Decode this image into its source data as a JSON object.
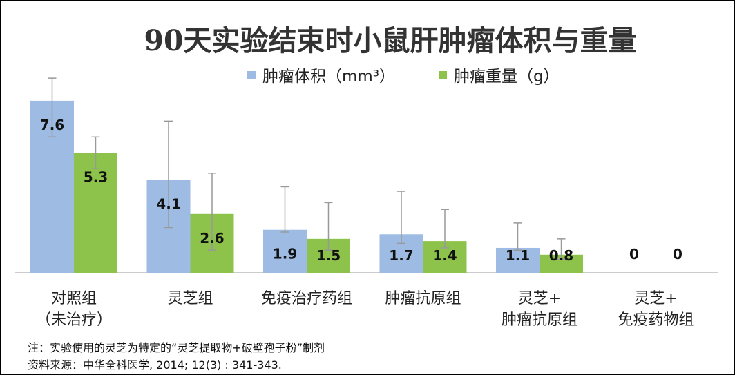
{
  "chart_data": {
    "type": "bar",
    "title": "90天实验结束时小鼠肝肿瘤体积与重量",
    "categories": [
      [
        "对照组",
        "（未治疗）"
      ],
      [
        "灵芝组"
      ],
      [
        "免疫治疗药组"
      ],
      [
        "肿瘤抗原组"
      ],
      [
        "灵芝+",
        "肿瘤抗原组"
      ],
      [
        "灵芝+",
        "免疫药物组"
      ]
    ],
    "series": [
      {
        "name": "肿瘤体积（mm³）",
        "color": "#9dbbe3",
        "values": [
          7.6,
          4.1,
          1.9,
          1.7,
          1.1,
          0
        ],
        "value_labels": [
          "7.6",
          "4.1",
          "1.9",
          "1.7",
          "1.1",
          "0"
        ],
        "error": [
          [
            6.0,
            8.6
          ],
          [
            2.0,
            6.7
          ],
          [
            1.8,
            3.8
          ],
          [
            1.3,
            3.6
          ],
          [
            1.0,
            2.2
          ],
          [
            0,
            0
          ]
        ]
      },
      {
        "name": "肿瘤重量（g）",
        "color": "#8dc34a",
        "values": [
          5.3,
          2.6,
          1.5,
          1.4,
          0.8,
          0
        ],
        "value_labels": [
          "5.3",
          "2.6",
          "1.5",
          "1.4",
          "0.8",
          "0"
        ],
        "error": [
          [
            4.6,
            6.0
          ],
          [
            1.0,
            4.4
          ],
          [
            1.0,
            3.1
          ],
          [
            1.1,
            2.8
          ],
          [
            0.6,
            1.5
          ],
          [
            0,
            0
          ]
        ]
      }
    ],
    "ylim": [
      0,
      9
    ],
    "grid": false,
    "legend_position": "top"
  },
  "notes": {
    "line1": "注：实验使用的灵芝为特定的“灵芝提取物+破壁孢子粉”制剂",
    "line2": "资料来源：中华全科医学, 2014; 12(3) : 341-343."
  }
}
